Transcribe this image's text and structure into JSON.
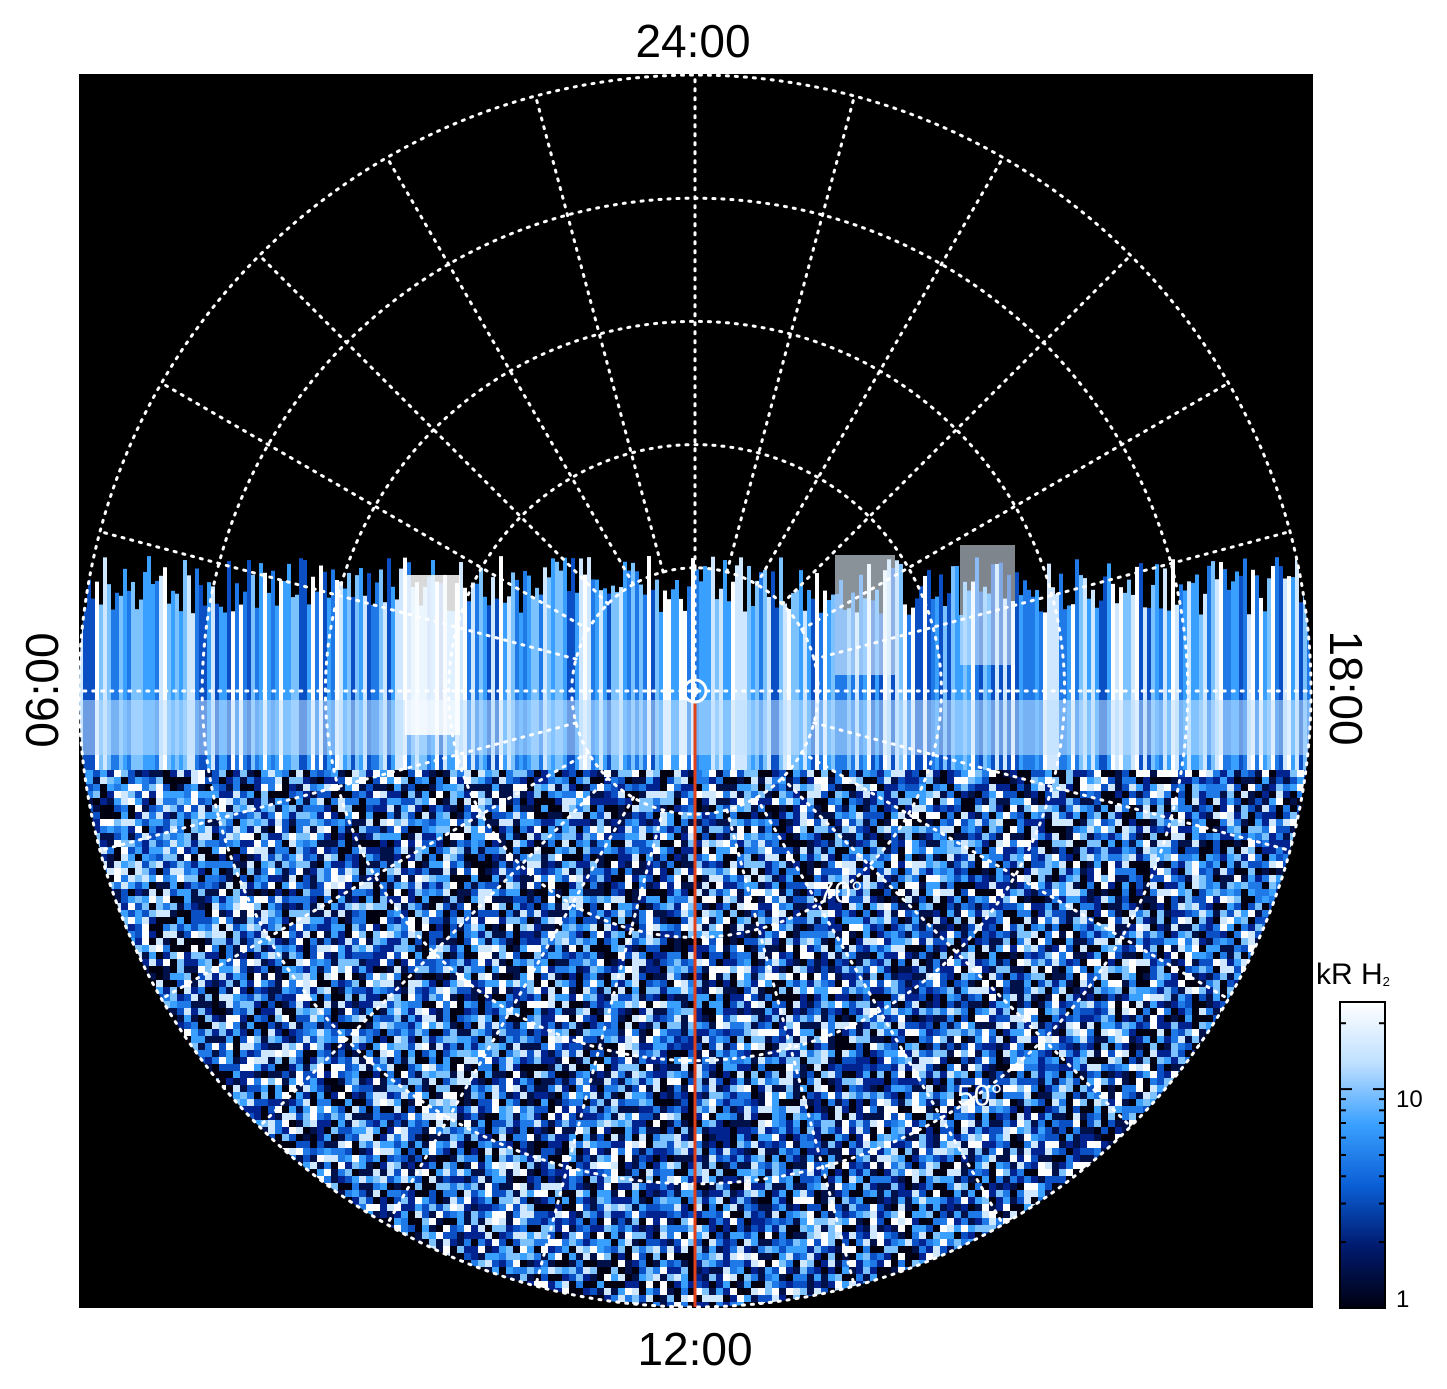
{
  "chart_data": {
    "type": "heatmap",
    "projection": "polar",
    "local_time_labels": {
      "top": "24:00",
      "bottom": "12:00",
      "left": "06:00",
      "right": "18:00"
    },
    "latitude_labels": [
      "70°",
      "50°"
    ],
    "latitude_circles_deg": [
      80,
      70,
      60,
      50,
      40
    ],
    "local_time_meridians_hours": [
      0,
      1,
      2,
      3,
      4,
      5,
      6,
      7,
      8,
      9,
      10,
      11,
      12,
      13,
      14,
      15,
      16,
      17,
      18,
      19,
      20,
      21,
      22,
      23
    ],
    "grid": true,
    "data_coverage": "dayside hemisphere only (roughly 05:30–18:30 LT through 12:00); nightside empty",
    "emission_feature": "bright H2 auroral band near 06:00–18:00 LT, brightest patch near 07:30 LT",
    "marked_meridian_hours": 12,
    "marked_meridian_color": "#e0401a",
    "colorbar": {
      "title": "kR H",
      "title_subscript": "2",
      "scale": "log",
      "range": [
        1,
        25
      ],
      "ticks": [
        10,
        1
      ],
      "tick_labels": [
        "10",
        "1"
      ],
      "colors": [
        "#000010",
        "#001a6e",
        "#0a5fd6",
        "#3aa0ff",
        "#bfe0ff",
        "#ffffff"
      ]
    }
  }
}
